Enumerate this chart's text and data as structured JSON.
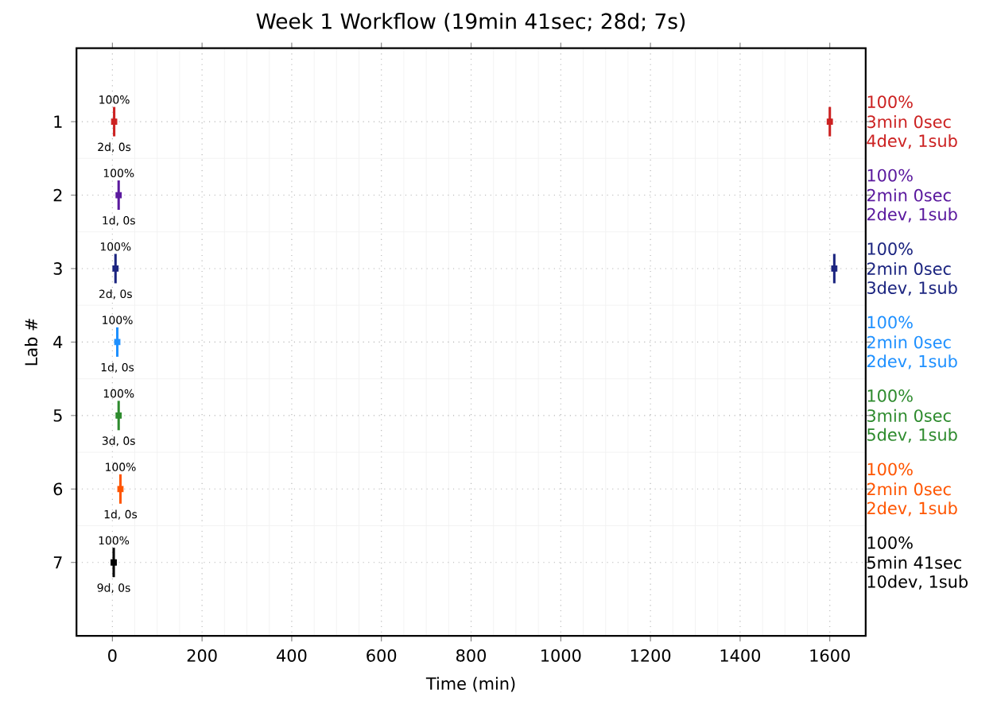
{
  "chart_data": {
    "type": "scatter",
    "title": "Week 1 Workflow (19min 41sec; 28d; 7s)",
    "xlabel": "Time (min)",
    "ylabel": "Lab #",
    "xlim": [
      -80,
      1680
    ],
    "xticks": [
      0,
      200,
      400,
      600,
      800,
      1000,
      1200,
      1400,
      1600
    ],
    "ylim": [
      8,
      0
    ],
    "yticks": [
      1,
      2,
      3,
      4,
      5,
      6,
      7
    ],
    "grid": true,
    "marker": "square",
    "series": [
      {
        "color": "#cc2222",
        "x": [
          4,
          1600
        ],
        "values": [
          1,
          1
        ],
        "errors": [
          0.2,
          0.2
        ]
      },
      {
        "color": "#5b1a9e",
        "x": [
          14
        ],
        "values": [
          2
        ],
        "errors": [
          0.2
        ]
      },
      {
        "color": "#1c2580",
        "x": [
          7,
          1610
        ],
        "values": [
          3,
          3
        ],
        "errors": [
          0.2,
          0.2
        ]
      },
      {
        "color": "#1e90ff",
        "x": [
          11
        ],
        "values": [
          4
        ],
        "errors": [
          0.2
        ]
      },
      {
        "color": "#2e8b2e",
        "x": [
          14
        ],
        "values": [
          5
        ],
        "errors": [
          0.2
        ]
      },
      {
        "color": "#ff5500",
        "x": [
          18
        ],
        "values": [
          6
        ],
        "errors": [
          0.2
        ]
      },
      {
        "color": "#000000",
        "x": [
          3
        ],
        "values": [
          7
        ],
        "errors": [
          0.2
        ]
      }
    ],
    "annotations": [
      {
        "text": "100%",
        "x": 4,
        "y": 1
      },
      {
        "text": "2d, 0s",
        "x": 4,
        "y": 1
      },
      {
        "text": "100%",
        "x": 14,
        "y": 2
      },
      {
        "text": "1d, 0s",
        "x": 14,
        "y": 2
      },
      {
        "text": "100%",
        "x": 7,
        "y": 3
      },
      {
        "text": "2d, 0s",
        "x": 7,
        "y": 3
      },
      {
        "text": "100%",
        "x": 11,
        "y": 4
      },
      {
        "text": "1d, 0s",
        "x": 11,
        "y": 4
      },
      {
        "text": "100%",
        "x": 14,
        "y": 5
      },
      {
        "text": "3d, 0s",
        "x": 14,
        "y": 5
      },
      {
        "text": "100%",
        "x": 18,
        "y": 6
      },
      {
        "text": "1d, 0s",
        "x": 18,
        "y": 6
      },
      {
        "text": "100%",
        "x": 3,
        "y": 7
      },
      {
        "text": "9d, 0s",
        "x": 3,
        "y": 7
      },
      "100%",
      "3min 0sec",
      "4dev, 1sub",
      "100%",
      "2min 0sec",
      "2dev, 1sub",
      "100%",
      "2min 0sec",
      "3dev, 1sub",
      "100%",
      "2min 0sec",
      "2dev, 1sub",
      "100%",
      "3min 0sec",
      "5dev, 1sub",
      "100%",
      "2min 0sec",
      "2dev, 1sub",
      "100%",
      "5min 41sec",
      "10dev, 1sub"
    ]
  }
}
